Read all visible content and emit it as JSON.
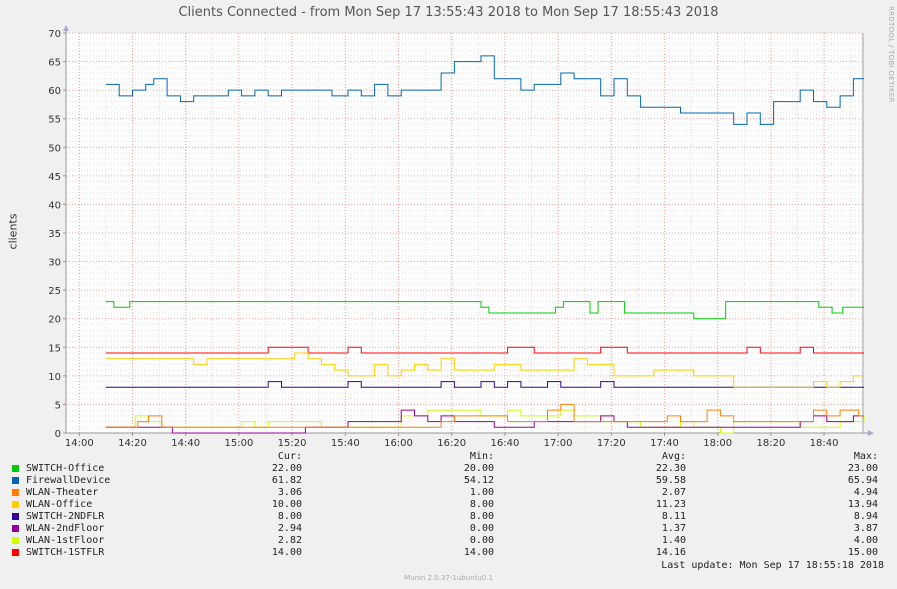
{
  "title": "Clients Connected - from Mon Sep 17 13:55:43 2018 to Mon Sep 17 18:55:43 2018",
  "side_label": "RRDTOOL / TOBI OETIKER",
  "footer_version": "Munin 2.0.37-1ubuntu0.1",
  "last_update": "Last update: Mon Sep 17 18:55:18 2018",
  "legend_headers": {
    "cur": "Cur:",
    "min": "Min:",
    "avg": "Avg:",
    "max": "Max:"
  },
  "legend": [
    {
      "name": "SWITCH-Office",
      "color": "#00cc00",
      "cur": "22.00",
      "min": "20.00",
      "avg": "22.30",
      "max": "23.00"
    },
    {
      "name": "FirewallDevice",
      "color": "#0066b3",
      "cur": "61.82",
      "min": "54.12",
      "avg": "59.58",
      "max": "65.94"
    },
    {
      "name": "WLAN-Theater",
      "color": "#ff8000",
      "cur": "3.06",
      "min": "1.00",
      "avg": "2.07",
      "max": "4.94"
    },
    {
      "name": "WLAN-Office",
      "color": "#ffcc00",
      "cur": "10.00",
      "min": "8.00",
      "avg": "11.23",
      "max": "13.94"
    },
    {
      "name": "SWITCH-2NDFLR",
      "color": "#330099",
      "cur": "8.00",
      "min": "8.00",
      "avg": "8.11",
      "max": "8.94"
    },
    {
      "name": "WLAN-2ndFloor",
      "color": "#990099",
      "cur": "2.94",
      "min": "0.00",
      "avg": "1.37",
      "max": "3.87"
    },
    {
      "name": "WLAN-1stFloor",
      "color": "#ccff00",
      "cur": "2.82",
      "min": "0.00",
      "avg": "1.40",
      "max": "4.00"
    },
    {
      "name": "SWITCH-1STFLR",
      "color": "#ff0000",
      "cur": "14.00",
      "min": "14.00",
      "avg": "14.16",
      "max": "15.00"
    }
  ],
  "chart_data": {
    "type": "line",
    "title": "Clients Connected - from Mon Sep 17 13:55:43 2018 to Mon Sep 17 18:55:43 2018",
    "xlabel": "",
    "ylabel": "clients",
    "ylim": [
      0,
      70
    ],
    "xlim": [
      "13:55",
      "18:55"
    ],
    "yticks": [
      0,
      5,
      10,
      15,
      20,
      25,
      30,
      35,
      40,
      45,
      50,
      55,
      60,
      65,
      70
    ],
    "xticks": [
      "14:00",
      "14:20",
      "14:40",
      "15:00",
      "15:20",
      "15:40",
      "16:00",
      "16:20",
      "16:40",
      "17:00",
      "17:20",
      "17:40",
      "18:00",
      "18:20",
      "18:40"
    ],
    "grid": true,
    "series": [
      {
        "name": "SWITCH-Office",
        "color": "#00cc00",
        "points": [
          [
            "14:10",
            23
          ],
          [
            "14:13",
            22
          ],
          [
            "14:19",
            23
          ],
          [
            "16:31",
            22
          ],
          [
            "16:34",
            21
          ],
          [
            "16:59",
            22
          ],
          [
            "17:02",
            23
          ],
          [
            "17:12",
            21
          ],
          [
            "17:15",
            23
          ],
          [
            "17:25",
            21
          ],
          [
            "17:27",
            21
          ],
          [
            "17:51",
            20
          ],
          [
            "17:56",
            20
          ],
          [
            "18:03",
            23
          ],
          [
            "18:38",
            22
          ],
          [
            "18:43",
            21
          ],
          [
            "18:47",
            22
          ],
          [
            "18:55",
            22
          ]
        ]
      },
      {
        "name": "FirewallDevice",
        "color": "#0066b3",
        "points": [
          [
            "14:10",
            61
          ],
          [
            "14:15",
            59
          ],
          [
            "14:20",
            60
          ],
          [
            "14:25",
            61
          ],
          [
            "14:28",
            62
          ],
          [
            "14:33",
            59
          ],
          [
            "14:38",
            58
          ],
          [
            "14:43",
            59
          ],
          [
            "14:56",
            60
          ],
          [
            "15:01",
            59
          ],
          [
            "15:06",
            60
          ],
          [
            "15:11",
            59
          ],
          [
            "15:16",
            60
          ],
          [
            "15:35",
            59
          ],
          [
            "15:41",
            60
          ],
          [
            "15:46",
            59
          ],
          [
            "15:51",
            61
          ],
          [
            "15:56",
            59
          ],
          [
            "16:01",
            60
          ],
          [
            "16:16",
            63
          ],
          [
            "16:21",
            65
          ],
          [
            "16:31",
            66
          ],
          [
            "16:36",
            62
          ],
          [
            "16:41",
            62
          ],
          [
            "16:46",
            60
          ],
          [
            "16:51",
            61
          ],
          [
            "16:58",
            61
          ],
          [
            "17:01",
            63
          ],
          [
            "17:06",
            62
          ],
          [
            "17:11",
            62
          ],
          [
            "17:16",
            59
          ],
          [
            "17:21",
            62
          ],
          [
            "17:26",
            59
          ],
          [
            "17:31",
            57
          ],
          [
            "17:46",
            56
          ],
          [
            "18:06",
            54
          ],
          [
            "18:11",
            56
          ],
          [
            "18:16",
            54
          ],
          [
            "18:21",
            58
          ],
          [
            "18:31",
            60
          ],
          [
            "18:36",
            58
          ],
          [
            "18:41",
            57
          ],
          [
            "18:46",
            59
          ],
          [
            "18:51",
            62
          ],
          [
            "18:55",
            62
          ]
        ]
      },
      {
        "name": "WLAN-Theater",
        "color": "#ff8000",
        "points": [
          [
            "14:10",
            1
          ],
          [
            "14:22",
            2
          ],
          [
            "14:26",
            3
          ],
          [
            "14:31",
            1
          ],
          [
            "16:16",
            2
          ],
          [
            "16:21",
            3
          ],
          [
            "16:41",
            2
          ],
          [
            "16:56",
            4
          ],
          [
            "17:01",
            5
          ],
          [
            "17:06",
            2
          ],
          [
            "17:31",
            2
          ],
          [
            "17:41",
            3
          ],
          [
            "17:46",
            2
          ],
          [
            "17:56",
            4
          ],
          [
            "18:01",
            3
          ],
          [
            "18:06",
            2
          ],
          [
            "18:16",
            2
          ],
          [
            "18:36",
            4
          ],
          [
            "18:41",
            3
          ],
          [
            "18:46",
            4
          ],
          [
            "18:53",
            3
          ],
          [
            "18:55",
            3
          ]
        ]
      },
      {
        "name": "WLAN-Office",
        "color": "#ffcc00",
        "points": [
          [
            "14:10",
            13
          ],
          [
            "14:43",
            12
          ],
          [
            "14:48",
            13
          ],
          [
            "15:21",
            14
          ],
          [
            "15:26",
            13
          ],
          [
            "15:31",
            12
          ],
          [
            "15:36",
            11
          ],
          [
            "15:41",
            10
          ],
          [
            "15:51",
            12
          ],
          [
            "15:56",
            10
          ],
          [
            "16:01",
            11
          ],
          [
            "16:06",
            12
          ],
          [
            "16:11",
            11
          ],
          [
            "16:16",
            13
          ],
          [
            "16:21",
            11
          ],
          [
            "16:36",
            12
          ],
          [
            "16:46",
            11
          ],
          [
            "17:06",
            13
          ],
          [
            "17:11",
            12
          ],
          [
            "17:21",
            10
          ],
          [
            "17:26",
            10
          ],
          [
            "17:36",
            11
          ],
          [
            "17:51",
            10
          ],
          [
            "18:06",
            8
          ],
          [
            "18:36",
            9
          ],
          [
            "18:41",
            8
          ],
          [
            "18:46",
            9
          ],
          [
            "18:51",
            10
          ],
          [
            "18:55",
            10
          ]
        ]
      },
      {
        "name": "SWITCH-2NDFLR",
        "color": "#330099",
        "points": [
          [
            "14:10",
            8
          ],
          [
            "15:11",
            9
          ],
          [
            "15:16",
            8
          ],
          [
            "15:41",
            9
          ],
          [
            "15:46",
            8
          ],
          [
            "16:16",
            9
          ],
          [
            "16:21",
            8
          ],
          [
            "16:31",
            9
          ],
          [
            "16:36",
            8
          ],
          [
            "16:41",
            9
          ],
          [
            "16:46",
            8
          ],
          [
            "16:56",
            9
          ],
          [
            "17:01",
            8
          ],
          [
            "17:16",
            9
          ],
          [
            "17:21",
            8
          ],
          [
            "18:55",
            8
          ]
        ]
      },
      {
        "name": "WLAN-2ndFloor",
        "color": "#990099",
        "points": [
          [
            "14:10",
            1
          ],
          [
            "14:25",
            1
          ],
          [
            "14:35",
            0
          ],
          [
            "15:25",
            1
          ],
          [
            "15:41",
            2
          ],
          [
            "16:01",
            4
          ],
          [
            "16:06",
            3
          ],
          [
            "16:11",
            2
          ],
          [
            "16:16",
            3
          ],
          [
            "16:21",
            2
          ],
          [
            "16:36",
            1
          ],
          [
            "16:51",
            2
          ],
          [
            "17:01",
            2
          ],
          [
            "17:06",
            2
          ],
          [
            "17:16",
            3
          ],
          [
            "17:21",
            2
          ],
          [
            "17:26",
            1
          ],
          [
            "18:01",
            1
          ],
          [
            "18:31",
            2
          ],
          [
            "18:36",
            3
          ],
          [
            "18:41",
            2
          ],
          [
            "18:51",
            3
          ],
          [
            "18:55",
            3
          ]
        ]
      },
      {
        "name": "WLAN-1stFloor",
        "color": "#ccff00",
        "points": [
          [
            "14:10",
            1
          ],
          [
            "14:21",
            3
          ],
          [
            "14:26",
            2
          ],
          [
            "14:31",
            1
          ],
          [
            "14:46",
            1
          ],
          [
            "15:01",
            2
          ],
          [
            "15:06",
            1
          ],
          [
            "15:11",
            2
          ],
          [
            "15:31",
            1
          ],
          [
            "15:41",
            1
          ],
          [
            "16:01",
            3
          ],
          [
            "16:11",
            4
          ],
          [
            "16:31",
            3
          ],
          [
            "16:41",
            4
          ],
          [
            "16:46",
            3
          ],
          [
            "17:01",
            4
          ],
          [
            "17:06",
            3
          ],
          [
            "17:16",
            2
          ],
          [
            "17:31",
            1
          ],
          [
            "17:46",
            2
          ],
          [
            "17:51",
            1
          ],
          [
            "18:01",
            0
          ],
          [
            "18:06",
            2
          ],
          [
            "18:31",
            1
          ],
          [
            "18:41",
            1
          ],
          [
            "18:46",
            2
          ],
          [
            "18:55",
            3
          ]
        ]
      },
      {
        "name": "SWITCH-1STFLR",
        "color": "#ff0000",
        "points": [
          [
            "14:10",
            14
          ],
          [
            "15:11",
            15
          ],
          [
            "15:21",
            15
          ],
          [
            "15:26",
            14
          ],
          [
            "15:41",
            15
          ],
          [
            "15:46",
            14
          ],
          [
            "16:36",
            14
          ],
          [
            "16:41",
            15
          ],
          [
            "16:51",
            14
          ],
          [
            "17:16",
            15
          ],
          [
            "17:26",
            14
          ],
          [
            "18:11",
            15
          ],
          [
            "18:16",
            14
          ],
          [
            "18:31",
            15
          ],
          [
            "18:36",
            14
          ],
          [
            "18:55",
            14
          ]
        ]
      }
    ]
  }
}
